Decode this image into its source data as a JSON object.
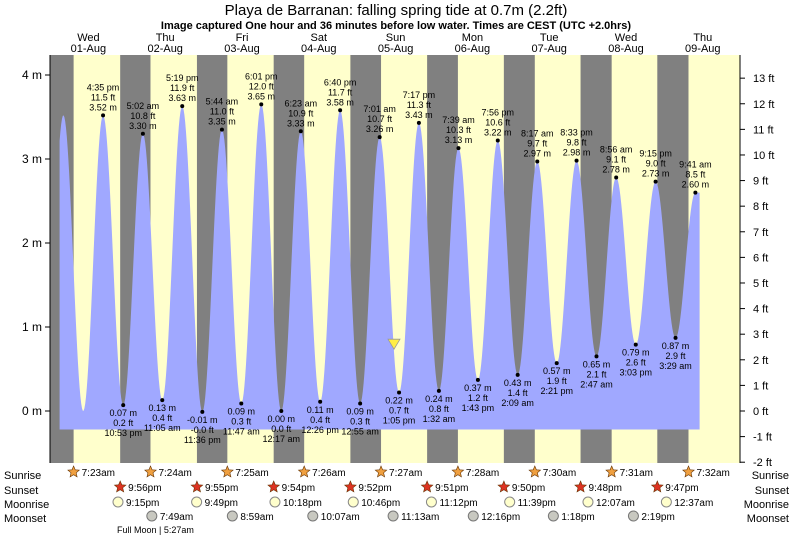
{
  "title": "Playa de Barranan: falling  spring tide at 0.7m (2.2ft)",
  "subtitle": "Image captured One hour and 36 minutes before low water. Times are CEST (UTC +2.0hrs)",
  "days": [
    {
      "name": "Wed",
      "date": "01-Aug"
    },
    {
      "name": "Thu",
      "date": "02-Aug"
    },
    {
      "name": "Fri",
      "date": "03-Aug"
    },
    {
      "name": "Sat",
      "date": "04-Aug"
    },
    {
      "name": "Sun",
      "date": "05-Aug"
    },
    {
      "name": "Mon",
      "date": "06-Aug"
    },
    {
      "name": "Tue",
      "date": "07-Aug"
    },
    {
      "name": "Wed",
      "date": "08-Aug"
    },
    {
      "name": "Thu",
      "date": "09-Aug"
    }
  ],
  "colors": {
    "night": "#808080",
    "day": "#ffffcc",
    "water": "#a0a8ff",
    "day_label": "#cc0000",
    "marker": "#ffee44"
  },
  "chart_data": {
    "type": "area",
    "ylabel_left_unit": "m",
    "ylabel_right_unit": "ft",
    "ylim_m": [
      -0.6,
      4.2
    ],
    "y_ticks_m": [
      "0 m",
      "1 m",
      "2 m",
      "3 m",
      "4 m"
    ],
    "y_ticks_ft": [
      "-2 ft",
      "-1 ft",
      "0 ft",
      "1 ft",
      "2 ft",
      "3 ft",
      "4 ft",
      "5 ft",
      "6 ft",
      "7 ft",
      "8 ft",
      "9 ft",
      "10 ft",
      "11 ft",
      "12 ft",
      "13 ft"
    ],
    "high_tides": [
      {
        "time": "4:35 pm",
        "ft": "11.5 ft",
        "m": "3.52 m",
        "value": 3.52,
        "hour": 16.58
      },
      {
        "time": "5:02 am",
        "ft": "10.8 ft",
        "m": "3.30 m",
        "value": 3.3,
        "hour": 29.03
      },
      {
        "time": "5:19 pm",
        "ft": "11.9 ft",
        "m": "3.63 m",
        "value": 3.63,
        "hour": 41.32
      },
      {
        "time": "5:44 am",
        "ft": "11.0 ft",
        "m": "3.35 m",
        "value": 3.35,
        "hour": 53.73
      },
      {
        "time": "6:01 pm",
        "ft": "12.0 ft",
        "m": "3.65 m",
        "value": 3.65,
        "hour": 66.02
      },
      {
        "time": "6:23 am",
        "ft": "10.9 ft",
        "m": "3.33 m",
        "value": 3.33,
        "hour": 78.38
      },
      {
        "time": "6:40 pm",
        "ft": "11.7 ft",
        "m": "3.58 m",
        "value": 3.58,
        "hour": 90.67
      },
      {
        "time": "7:01 am",
        "ft": "10.7 ft",
        "m": "3.26 m",
        "value": 3.26,
        "hour": 103.02
      },
      {
        "time": "7:17 pm",
        "ft": "11.3 ft",
        "m": "3.43 m",
        "value": 3.43,
        "hour": 115.28
      },
      {
        "time": "7:39 am",
        "ft": "10.3 ft",
        "m": "3.13 m",
        "value": 3.13,
        "hour": 127.65
      },
      {
        "time": "7:56 pm",
        "ft": "10.6 ft",
        "m": "3.22 m",
        "value": 3.22,
        "hour": 139.93
      },
      {
        "time": "8:17 am",
        "ft": "9.7 ft",
        "m": "2.97 m",
        "value": 2.97,
        "hour": 152.28
      },
      {
        "time": "8:33 pm",
        "ft": "9.8 ft",
        "m": "2.98 m",
        "value": 2.98,
        "hour": 164.55
      },
      {
        "time": "8:56 am",
        "ft": "9.1 ft",
        "m": "2.78 m",
        "value": 2.78,
        "hour": 176.93
      },
      {
        "time": "9:15 pm",
        "ft": "9.0 ft",
        "m": "2.73 m",
        "value": 2.73,
        "hour": 189.25
      },
      {
        "time": "9:41 am",
        "ft": "8.5 ft",
        "m": "2.60 m",
        "value": 2.6,
        "hour": 201.68
      }
    ],
    "low_tides": [
      {
        "time": "10:53 pm",
        "ft": "0.2 ft",
        "m": "0.07 m",
        "value": 0.07,
        "hour": 22.88
      },
      {
        "time": "11:05 am",
        "ft": "0.4 ft",
        "m": "0.13 m",
        "value": 0.13,
        "hour": 35.08
      },
      {
        "time": "11:36 pm",
        "ft": "-0.0 ft",
        "m": "-0.01 m",
        "value": -0.01,
        "hour": 47.6
      },
      {
        "time": "11:47 am",
        "ft": "0.3 ft",
        "m": "0.09 m",
        "value": 0.09,
        "hour": 59.78
      },
      {
        "time": "12:17 am",
        "ft": "0.0 ft",
        "m": "0.00 m",
        "value": 0.0,
        "hour": 72.28
      },
      {
        "time": "12:26 pm",
        "ft": "0.4 ft",
        "m": "0.11 m",
        "value": 0.11,
        "hour": 84.43
      },
      {
        "time": "12:55 am",
        "ft": "0.3 ft",
        "m": "0.09 m",
        "value": 0.09,
        "hour": 96.92
      },
      {
        "time": "1:05 pm",
        "ft": "0.7 ft",
        "m": "0.22 m",
        "value": 0.22,
        "hour": 109.08
      },
      {
        "time": "1:32 am",
        "ft": "0.8 ft",
        "m": "0.24 m",
        "value": 0.24,
        "hour": 121.53
      },
      {
        "time": "1:43 pm",
        "ft": "1.2 ft",
        "m": "0.37 m",
        "value": 0.37,
        "hour": 133.72
      },
      {
        "time": "2:09 am",
        "ft": "1.4 ft",
        "m": "0.43 m",
        "value": 0.43,
        "hour": 146.15
      },
      {
        "time": "2:21 pm",
        "ft": "1.9 ft",
        "m": "0.57 m",
        "value": 0.57,
        "hour": 158.35
      },
      {
        "time": "2:47 am",
        "ft": "2.1 ft",
        "m": "0.65 m",
        "value": 0.65,
        "hour": 170.78
      },
      {
        "time": "3:03 pm",
        "ft": "2.6 ft",
        "m": "0.79 m",
        "value": 0.79,
        "hour": 183.05
      },
      {
        "time": "3:29 am",
        "ft": "2.9 ft",
        "m": "0.87 m",
        "value": 0.87,
        "hour": 195.48
      }
    ],
    "current_marker": {
      "hour": 107.5,
      "value": 0.7
    }
  },
  "astro": {
    "labels": {
      "sunrise": "Sunrise",
      "sunset": "Sunset",
      "moonrise": "Moonrise",
      "moonset": "Moonset"
    },
    "sunrise": [
      {
        "time": "7:23am",
        "hour": 7.38
      },
      {
        "time": "7:24am",
        "hour": 31.4
      },
      {
        "time": "7:25am",
        "hour": 55.42
      },
      {
        "time": "7:26am",
        "hour": 79.43
      },
      {
        "time": "7:27am",
        "hour": 103.45
      },
      {
        "time": "7:28am",
        "hour": 127.47
      },
      {
        "time": "7:30am",
        "hour": 151.5
      },
      {
        "time": "7:31am",
        "hour": 175.52
      },
      {
        "time": "7:32am",
        "hour": 199.53
      }
    ],
    "sunset": [
      {
        "time": "9:56pm",
        "hour": 21.93
      },
      {
        "time": "9:55pm",
        "hour": 45.92
      },
      {
        "time": "9:54pm",
        "hour": 69.9
      },
      {
        "time": "9:52pm",
        "hour": 93.87
      },
      {
        "time": "9:51pm",
        "hour": 117.85
      },
      {
        "time": "9:50pm",
        "hour": 141.83
      },
      {
        "time": "9:48pm",
        "hour": 165.8
      },
      {
        "time": "9:47pm",
        "hour": 189.78
      }
    ],
    "moonrise": [
      {
        "time": "9:15pm",
        "hour": 21.25
      },
      {
        "time": "9:49pm",
        "hour": 45.82
      },
      {
        "time": "10:18pm",
        "hour": 70.3
      },
      {
        "time": "10:46pm",
        "hour": 94.77
      },
      {
        "time": "11:12pm",
        "hour": 119.2
      },
      {
        "time": "11:39pm",
        "hour": 143.65
      },
      {
        "time": "12:07am",
        "hour": 168.12
      },
      {
        "time": "12:37am",
        "hour": 192.62
      }
    ],
    "moonset": [
      {
        "time": "7:49am",
        "hour": 31.82
      },
      {
        "time": "8:59am",
        "hour": 56.98
      },
      {
        "time": "10:07am",
        "hour": 82.12
      },
      {
        "time": "11:13am",
        "hour": 107.22
      },
      {
        "time": "12:16pm",
        "hour": 132.27
      },
      {
        "time": "1:18pm",
        "hour": 157.3
      },
      {
        "time": "2:19pm",
        "hour": 182.32
      }
    ],
    "moon_phase_note": "Full Moon | 5:27am"
  }
}
